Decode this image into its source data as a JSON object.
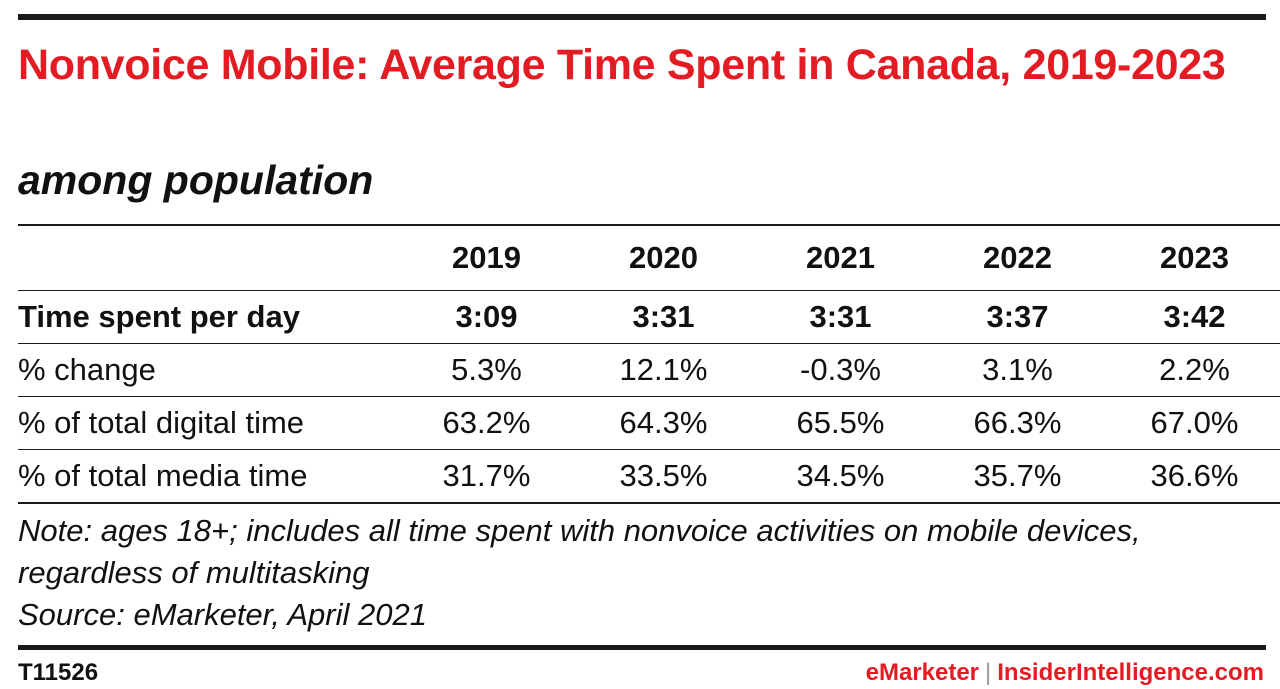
{
  "colors": {
    "title": "#e31b23",
    "brand": "#e31b23",
    "text": "#111111",
    "rule": "#1a1a1a"
  },
  "chart_data": {
    "type": "table",
    "title": "Nonvoice Mobile: Average Time Spent in Canada, 2019-2023",
    "subtitle": "among population",
    "columns": [
      "2019",
      "2020",
      "2021",
      "2022",
      "2023"
    ],
    "rows": [
      {
        "label": "Time spent per day",
        "bold": true,
        "values": [
          "3:09",
          "3:31",
          "3:31",
          "3:37",
          "3:42"
        ]
      },
      {
        "label": "% change",
        "bold": false,
        "values": [
          "5.3%",
          "12.1%",
          "-0.3%",
          "3.1%",
          "2.2%"
        ]
      },
      {
        "label": "% of total digital time",
        "bold": false,
        "values": [
          "63.2%",
          "64.3%",
          "65.5%",
          "66.3%",
          "67.0%"
        ]
      },
      {
        "label": "% of total media time",
        "bold": false,
        "values": [
          "31.7%",
          "33.5%",
          "34.5%",
          "35.7%",
          "36.6%"
        ]
      }
    ]
  },
  "notes": {
    "note": "Note: ages 18+; includes all time spent with nonvoice activities on mobile devices, regardless of multitasking",
    "source": "Source: eMarketer, April 2021"
  },
  "footer": {
    "chart_id": "T11526",
    "brand_left": "eMarketer",
    "separator": "|",
    "brand_right": "InsiderIntelligence.com"
  }
}
